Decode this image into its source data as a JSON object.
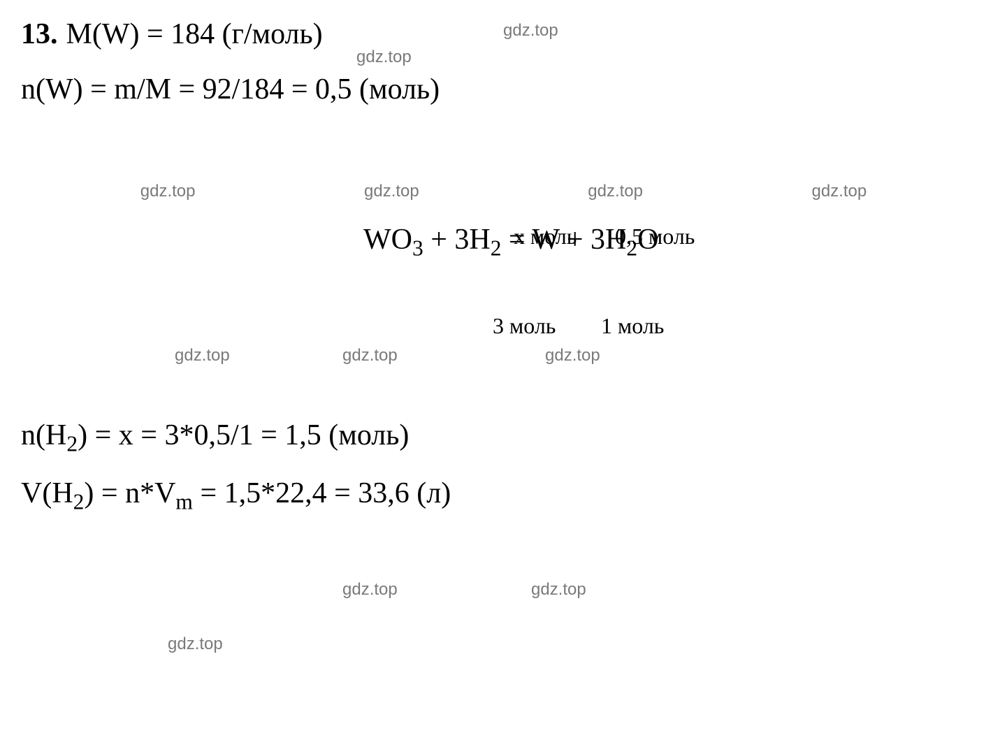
{
  "problem_number": "13.",
  "line1": "M(W) = 184 (г/моль)",
  "line2_prefix": "n(W) = m/M = 92/184 = 0,5 (моль)",
  "watermark": "gdz.top",
  "equation": {
    "anno_top_left": "x моль",
    "anno_top_right": "0,5 моль",
    "anno_bot_left": "3 моль",
    "anno_bot_right": "1 моль",
    "part_wo3_w": "WO",
    "sub3": "3",
    "plus1": " + 3H",
    "sub2a": "2",
    "equals": " = W + 3H",
    "sub2b": "2",
    "o": "O"
  },
  "line3_prefix": "n(H",
  "line3_sub": "2",
  "line3_rest": ") = x = 3*0,5/1 = 1,5 (моль)",
  "line4_prefix": "V(H",
  "line4_sub": "2",
  "line4_mid": ") = n*V",
  "line4_subm": "m",
  "line4_rest": " = 1,5*22,4 = 33,6 (л)"
}
